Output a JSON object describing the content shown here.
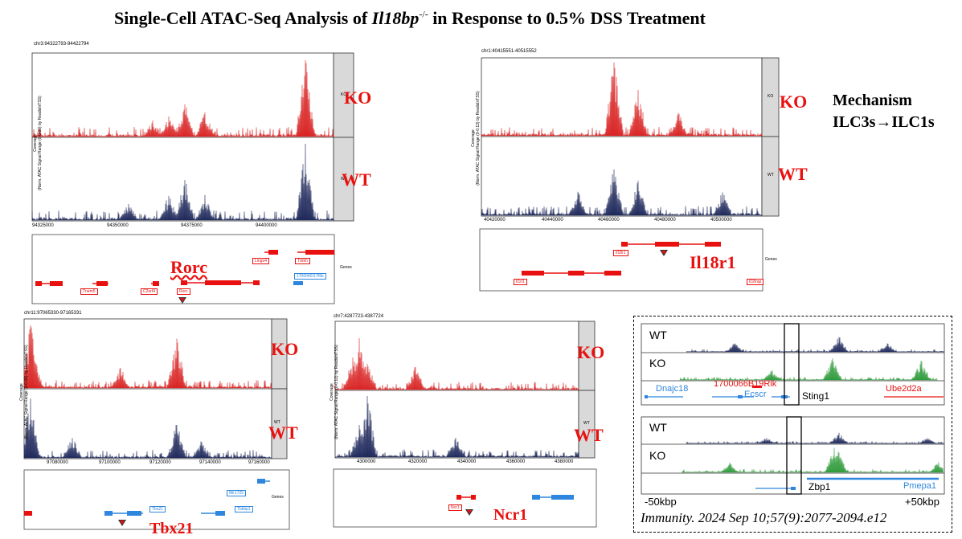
{
  "title": {
    "main": "Single-Cell ATAC-Seq Analysis of ",
    "gene": "Il18bp",
    "sup": "-/-",
    "rest": " in Response to 0.5% DSS Treatment"
  },
  "colors": {
    "ko": "#d92424",
    "wt": "#1f2a5c",
    "gene": "#e8110f",
    "gene_blue": "#2e86de",
    "green": "#2f9a3a"
  },
  "mechanism": {
    "line1": "Mechanism",
    "line2": "ILC3s→ILC1s"
  },
  "citation": "Immunity. 2024 Sep 10;57(9):2077-2094.e12",
  "panels": [
    {
      "id": "rorc",
      "region": "chr3:94322793-94422794",
      "ylabel1": "Coverage",
      "ylabel2": "(Norm. ATAC Signal Range (0-0.80) by ReadsInTSS)",
      "ko_strip": "KO",
      "wt_strip": "WT",
      "ko_label": "KO",
      "wt_label": "WT",
      "xticks": [
        "94325000",
        "94350000",
        "94375000",
        "94400000"
      ],
      "genes_label": "Genes",
      "gene_boxes": [
        "Lingo4",
        "Tdrkh",
        "Tnem5",
        "C2orf4",
        "Rorc",
        "1700040I17Rik"
      ],
      "target": "Rorc"
    },
    {
      "id": "il18r1",
      "region": "chr1:40415551-40515552",
      "ylabel1": "Coverage",
      "ylabel2": "(Norm. ATAC Signal Range (0-0.13) by ReadsInTSS)",
      "ko_strip": "KO",
      "wt_strip": "WT",
      "ko_label": "KO",
      "wt_label": "WT",
      "xticks": [
        "40420000",
        "40440000",
        "40460000",
        "40480000",
        "40500000"
      ],
      "genes_label": "Genes",
      "gene_boxes": [
        "Il18r1",
        "Il1rl1",
        "Il18rap"
      ],
      "target": "Il18r1"
    },
    {
      "id": "tbx21",
      "region": "chr11:97065330-97165331",
      "ylabel1": "Coverage",
      "ylabel2": "(Norm. ATAC Signal Range (0-0.68) by ReadsInTSS)",
      "ko_strip": "KO",
      "wt_strip": "WT",
      "ko_label": "KO",
      "wt_label": "WT",
      "xticks": [
        "97080000",
        "97100000",
        "97120000",
        "97140000",
        "97160000"
      ],
      "genes_label": "Genes",
      "gene_boxes": [
        "Tbx21",
        "Mir1725",
        "Tbkbp1"
      ],
      "target": "Tbx21"
    },
    {
      "id": "ncr1",
      "region": "chr7:4287723-4387724",
      "ylabel1": "Coverage",
      "ylabel2": "(Norm. ATAC Signal Range (0-0.12) by ReadsInTSS)",
      "ko_strip": "KO",
      "wt_strip": "WT",
      "ko_label": "KO",
      "wt_label": "WT",
      "xticks": [
        "4300000",
        "4320000",
        "4340000",
        "4360000",
        "4380000"
      ],
      "genes_label": "Genes",
      "gene_boxes": [
        "Ncr1"
      ],
      "target": "Ncr1"
    }
  ],
  "immunity": {
    "top": {
      "wt": "WT",
      "ko": "KO",
      "genes": [
        "Dnajc18",
        "1700066B19Rik",
        "Ecscr",
        "Sting1",
        "Ube2d2a"
      ]
    },
    "bottom": {
      "wt": "WT",
      "ko": "KO",
      "genes": [
        "Zbp1",
        "Pmepa1"
      ],
      "left_axis": "-50kbp",
      "right_axis": "+50kbp"
    }
  }
}
